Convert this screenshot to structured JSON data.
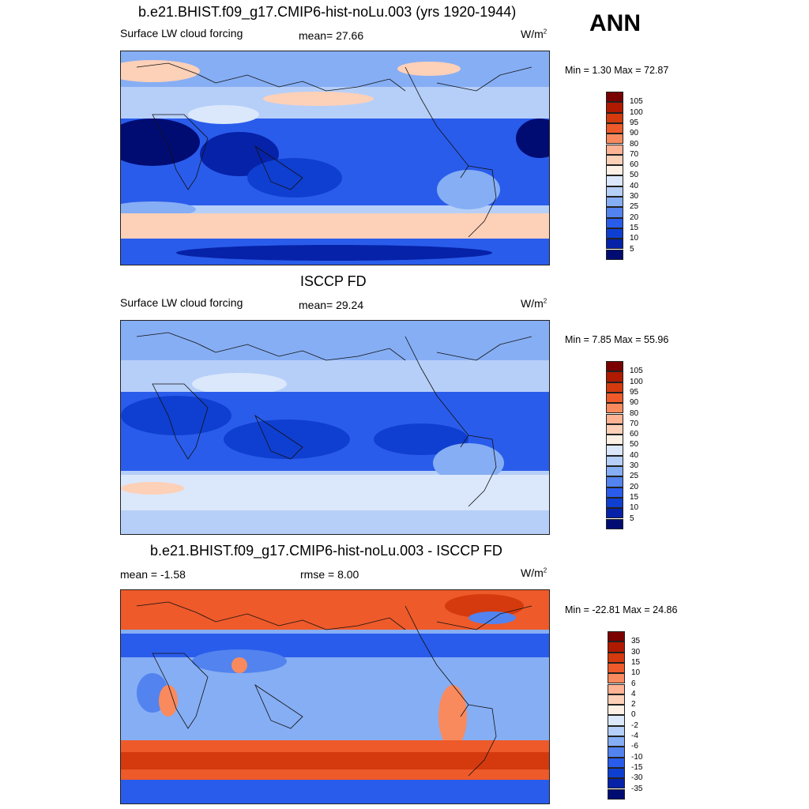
{
  "season": "ANN",
  "panels": [
    {
      "title": "b.e21.BHIST.f09_g17.CMIP6-hist-noLu.003 (yrs 1920-1944)",
      "left_label": "Surface LW cloud forcing",
      "center_label": "mean=  27.66",
      "units_base": "W/m",
      "units_exp": "2",
      "minmax": "Min =   1.30 Max =  72.87",
      "colorbar": {
        "labels": [
          "105",
          "100",
          "95",
          "90",
          "80",
          "70",
          "60",
          "50",
          "40",
          "30",
          "25",
          "20",
          "15",
          "10",
          "5"
        ],
        "colors": [
          "#7a0000",
          "#b01a00",
          "#d43a0e",
          "#ee5a2a",
          "#f98a5e",
          "#fdb394",
          "#fdd0b8",
          "#fdf0e4",
          "#dbe8fb",
          "#b6cff8",
          "#86aef4",
          "#5283ef",
          "#2a5ceb",
          "#0f3fd0",
          "#0622a8",
          "#010c73"
        ]
      }
    },
    {
      "title": "ISCCP FD",
      "left_label": "Surface LW cloud forcing",
      "center_label": "mean=  29.24",
      "units_base": "W/m",
      "units_exp": "2",
      "minmax": "Min =   7.85 Max =  55.96",
      "colorbar": {
        "labels": [
          "105",
          "100",
          "95",
          "90",
          "80",
          "70",
          "60",
          "50",
          "40",
          "30",
          "25",
          "20",
          "15",
          "10",
          "5"
        ],
        "colors": [
          "#7a0000",
          "#b01a00",
          "#d43a0e",
          "#ee5a2a",
          "#f98a5e",
          "#fdb394",
          "#fdd0b8",
          "#fdf0e4",
          "#dbe8fb",
          "#b6cff8",
          "#86aef4",
          "#5283ef",
          "#2a5ceb",
          "#0f3fd0",
          "#0622a8",
          "#010c73"
        ]
      }
    },
    {
      "title": "b.e21.BHIST.f09_g17.CMIP6-hist-noLu.003 - ISCCP FD",
      "left_label": "mean =  -1.58",
      "center_label": "rmse =   8.00",
      "units_base": "W/m",
      "units_exp": "2",
      "minmax": "Min = -22.81 Max =  24.86",
      "colorbar": {
        "labels": [
          "35",
          "30",
          "15",
          "10",
          "6",
          "4",
          "2",
          "0",
          "-2",
          "-4",
          "-6",
          "-10",
          "-15",
          "-30",
          "-35"
        ],
        "colors": [
          "#7a0000",
          "#b01a00",
          "#d43a0e",
          "#ee5a2a",
          "#f98a5e",
          "#fdb394",
          "#fdd0b8",
          "#fdf0e4",
          "#dbe8fb",
          "#b6cff8",
          "#86aef4",
          "#5283ef",
          "#2a5ceb",
          "#0f3fd0",
          "#0622a8",
          "#010c73"
        ]
      }
    }
  ]
}
